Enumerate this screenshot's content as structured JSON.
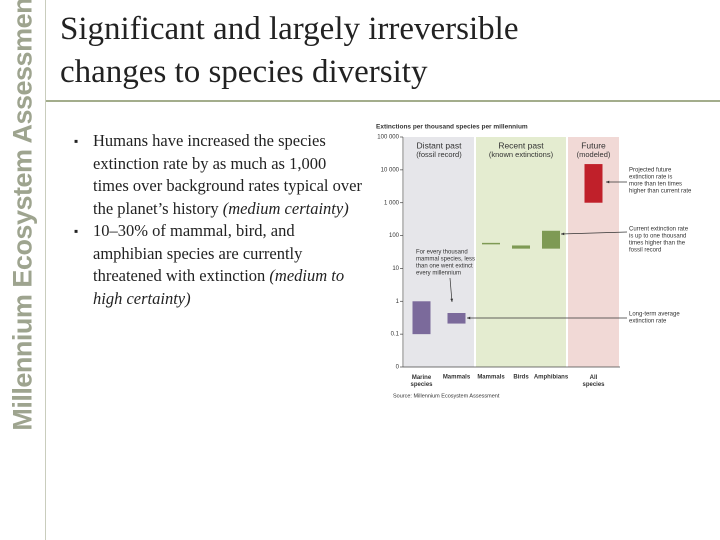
{
  "slide": {
    "sidebar": "Millennium Ecosystem Assessment",
    "title": [
      "Significant and largely irreversible",
      "changes to species diversity"
    ],
    "bullets": [
      [
        {
          "text": "Humans have increased the species extinction rate by as much as 1,000 times over background rates typical over the planet’s history "
        },
        {
          "text": "(medium certainty)",
          "italic": true
        }
      ],
      [
        {
          "text": "10–30% of mammal, bird, and amphibian species are currently threatened with extinction "
        },
        {
          "text": "(medium to high certainty)",
          "italic": true
        }
      ]
    ]
  },
  "chart_data": {
    "type": "range-bar",
    "title": "Extinctions per thousand species per millennium",
    "log_scale": true,
    "ylim": [
      0.01,
      100000
    ],
    "yticks": [
      0,
      0.1,
      1,
      10,
      100,
      {
        "value": 1000,
        "label": "1 000"
      },
      {
        "value": 10000,
        "label": "10 000"
      },
      {
        "value": 100000,
        "label": "100 000"
      }
    ],
    "groups": [
      {
        "name": "Distant past",
        "subtitle": "(fossil record)",
        "background": "#e6e6ea",
        "color": "#7b6a9b",
        "categories": [
          "Marine species",
          "Mammals"
        ],
        "low": [
          0.1,
          0.21
        ],
        "high": [
          1,
          0.44
        ]
      },
      {
        "name": "Recent past",
        "subtitle": "(known extinctions)",
        "background": "#e4ecd0",
        "color": "#7e9a54",
        "categories": [
          "Mammals",
          "Birds",
          "Amphibians"
        ],
        "low": [
          55,
          40,
          40
        ],
        "high": [
          60,
          50,
          140
        ]
      },
      {
        "name": "Future",
        "subtitle": "(modeled)",
        "background": "#f1d9d6",
        "color": "#c0202a",
        "categories": [
          "All species"
        ],
        "low": [
          1000
        ],
        "high": [
          15000
        ]
      }
    ],
    "annotations": [
      [
        "For every thousand",
        "mammal species, less",
        "than one went extinct",
        "every millennium"
      ],
      [
        "Projected future",
        "extinction rate is",
        "more than ten times",
        "higher than current rate"
      ],
      [
        "Current extinction rate",
        "is up to one thousand",
        "times higher than the",
        "fossil record"
      ],
      [
        "Long-term average",
        "extinction rate"
      ]
    ],
    "source": "Source: Millennium Ecosystem Assessment"
  }
}
